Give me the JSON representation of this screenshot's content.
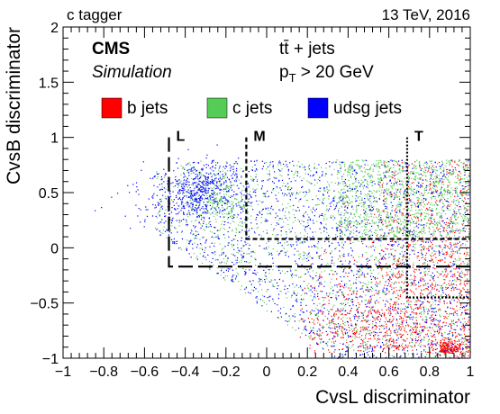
{
  "header": {
    "left": "c tagger",
    "right": "13 TeV, 2016"
  },
  "labels": {
    "experiment": "CMS",
    "status": "Simulation",
    "process": "tt̄ + jets",
    "cut_p": "p",
    "cut_sub": "T",
    "cut_rest": " > 20 GeV"
  },
  "chart_data": {
    "type": "scatter",
    "title": "",
    "xlabel": "CvsL discriminator",
    "ylabel": "CvsB discriminator",
    "xlim": [
      -1,
      1
    ],
    "ylim": [
      -1,
      2
    ],
    "x_ticks": [
      -1,
      -0.8,
      -0.6,
      -0.4,
      -0.2,
      0,
      0.2,
      0.4,
      0.6,
      0.8,
      1
    ],
    "x_tick_labels": [
      "−1",
      "−0.8",
      "−0.6",
      "−0.4",
      "−0.2",
      "0",
      "0.2",
      "0.4",
      "0.6",
      "0.8",
      "1"
    ],
    "y_ticks": [
      -1,
      -0.5,
      0,
      0.5,
      1,
      1.5,
      2
    ],
    "y_tick_labels": [
      "−1",
      "−0.5",
      "0",
      "0.5",
      "1",
      "1.5",
      "2"
    ],
    "grid": false,
    "legend_position": "top-left",
    "series": [
      {
        "name": "b jets",
        "color": "#ff0000"
      },
      {
        "name": "c jets",
        "color": "#55cc55"
      },
      {
        "name": "udsg jets",
        "color": "#0000ff"
      }
    ],
    "working_points": [
      {
        "name": "L",
        "cvsl": -0.48,
        "cvsb": -0.17,
        "style": "long-dash"
      },
      {
        "name": "M",
        "cvsl": -0.1,
        "cvsb": 0.08,
        "style": "short-dash"
      },
      {
        "name": "T",
        "cvsl": 0.69,
        "cvsb": -0.45,
        "style": "dotted"
      }
    ]
  }
}
